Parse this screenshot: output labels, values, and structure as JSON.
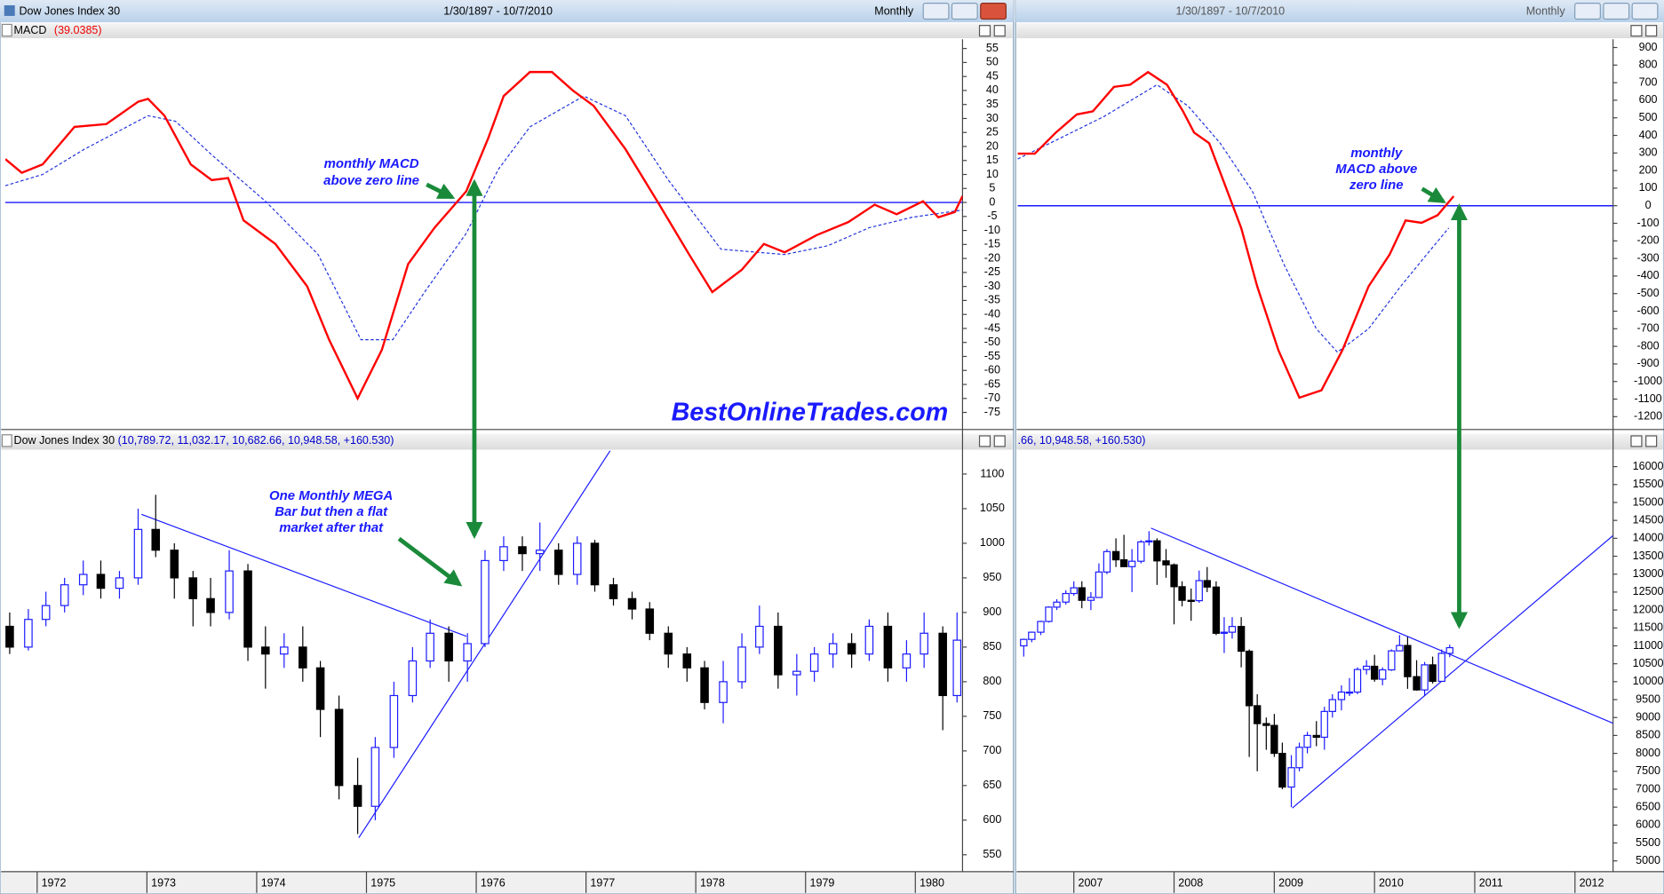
{
  "left": {
    "title": "Dow Jones Index 30",
    "range": "1/30/1897 - 10/7/2010",
    "period": "Monthly",
    "xlim": [
      1971.71,
      1980.43
    ],
    "xticks": [
      1972,
      1973,
      1974,
      1975,
      1976,
      1977,
      1978,
      1979,
      1980
    ],
    "macd": {
      "label": "MACD",
      "value": "(39.0385)",
      "ylim": [
        -81.1,
        58.3
      ],
      "yticks": [
        55,
        50,
        45,
        40,
        35,
        30,
        25,
        20,
        15,
        10,
        5,
        0,
        -5,
        -10,
        -15,
        -20,
        -25,
        -30,
        -35,
        -40,
        -45,
        -50,
        -55,
        -60,
        -65,
        -70,
        -75
      ],
      "zero": 0,
      "macd_x": [
        1971.71,
        1971.86,
        1972.05,
        1972.34,
        1972.63,
        1972.92,
        1973.01,
        1973.16,
        1973.4,
        1973.59,
        1973.74,
        1973.88,
        1974.17,
        1974.46,
        1974.66,
        1974.92,
        1975.14,
        1975.38,
        1975.62,
        1975.91,
        1976.11,
        1976.25,
        1976.49,
        1976.69,
        1976.88,
        1977.07,
        1977.36,
        1977.65,
        1977.94,
        1978.15,
        1978.42,
        1978.62,
        1978.81,
        1979.1,
        1979.39,
        1979.63,
        1979.83,
        1980.07,
        1980.21,
        1980.36,
        1980.43
      ],
      "macd": [
        15.5,
        10.6,
        13.6,
        27,
        28,
        36,
        37,
        31,
        13.6,
        8,
        8.7,
        -6.4,
        -14.8,
        -30,
        -49,
        -70,
        -52.7,
        -22,
        -9,
        4,
        23,
        38,
        46.6,
        46.6,
        40,
        34.5,
        19,
        0.4,
        -18.6,
        -32,
        -24,
        -14.8,
        -17.8,
        -11.7,
        -7,
        -0.8,
        -4.2,
        0.4,
        -5.3,
        -3.4,
        2.3
      ],
      "signal_x": [
        1971.71,
        1972.05,
        1972.43,
        1973.01,
        1973.26,
        1973.59,
        1974.08,
        1974.56,
        1974.95,
        1975.24,
        1975.53,
        1975.91,
        1976.2,
        1976.49,
        1976.98,
        1977.36,
        1977.75,
        1978.23,
        1978.81,
        1979.2,
        1979.58,
        1979.97,
        1980.43
      ],
      "signal": [
        6,
        10,
        19,
        31,
        29,
        17,
        0.4,
        -18.6,
        -49,
        -49,
        -32,
        -11,
        11.7,
        27,
        38,
        31,
        8,
        -16.7,
        -18.6,
        -15.5,
        -9,
        -5.3,
        -2.7
      ],
      "annotation": [
        "monthly MACD",
        "above zero line"
      ]
    },
    "price": {
      "label": "Dow Jones Index 30",
      "values": "(10,789.72, 11,032.17, 10,682.66, 10,948.58, +160.530)",
      "ylim": [
        525.5,
        1133.7
      ],
      "yticks": [
        1100,
        1050,
        1000,
        950,
        900,
        850,
        800,
        750,
        700,
        650,
        600,
        550
      ],
      "x": [
        1971.75,
        1971.92,
        1972.08,
        1972.25,
        1972.42,
        1972.58,
        1972.75,
        1972.92,
        1973.08,
        1973.25,
        1973.42,
        1973.58,
        1973.75,
        1973.92,
        1974.08,
        1974.25,
        1974.42,
        1974.58,
        1974.75,
        1974.92,
        1975.08,
        1975.25,
        1975.42,
        1975.58,
        1975.75,
        1975.92,
        1976.08,
        1976.25,
        1976.42,
        1976.58,
        1976.75,
        1976.92,
        1977.08,
        1977.25,
        1977.42,
        1977.58,
        1977.75,
        1977.92,
        1978.08,
        1978.25,
        1978.42,
        1978.58,
        1978.75,
        1978.92,
        1979.08,
        1979.25,
        1979.42,
        1979.58,
        1979.75,
        1979.92,
        1980.08,
        1980.25,
        1980.38
      ],
      "ohlc": [
        [
          880,
          900,
          840,
          850
        ],
        [
          850,
          905,
          845,
          890
        ],
        [
          890,
          930,
          880,
          910
        ],
        [
          910,
          950,
          900,
          940
        ],
        [
          940,
          975,
          925,
          955
        ],
        [
          955,
          975,
          920,
          935
        ],
        [
          935,
          960,
          920,
          950
        ],
        [
          950,
          1050,
          940,
          1020
        ],
        [
          1020,
          1070,
          980,
          990
        ],
        [
          990,
          1000,
          920,
          950
        ],
        [
          950,
          960,
          880,
          920
        ],
        [
          920,
          950,
          880,
          900
        ],
        [
          900,
          990,
          890,
          960
        ],
        [
          960,
          970,
          830,
          850
        ],
        [
          850,
          880,
          790,
          840
        ],
        [
          840,
          870,
          820,
          850
        ],
        [
          850,
          880,
          800,
          820
        ],
        [
          820,
          830,
          720,
          760
        ],
        [
          760,
          780,
          630,
          650
        ],
        [
          650,
          690,
          580,
          620
        ],
        [
          620,
          720,
          600,
          705
        ],
        [
          705,
          800,
          690,
          780
        ],
        [
          780,
          850,
          770,
          830
        ],
        [
          830,
          890,
          820,
          870
        ],
        [
          870,
          880,
          800,
          830
        ],
        [
          830,
          870,
          800,
          855
        ],
        [
          855,
          990,
          850,
          975
        ],
        [
          975,
          1010,
          960,
          995
        ],
        [
          995,
          1010,
          960,
          985
        ],
        [
          985,
          1030,
          960,
          990
        ],
        [
          990,
          1000,
          940,
          955
        ],
        [
          955,
          1010,
          940,
          1000
        ],
        [
          1000,
          1005,
          930,
          940
        ],
        [
          940,
          950,
          910,
          920
        ],
        [
          920,
          930,
          890,
          905
        ],
        [
          905,
          915,
          860,
          870
        ],
        [
          870,
          880,
          820,
          840
        ],
        [
          840,
          850,
          800,
          820
        ],
        [
          820,
          830,
          760,
          770
        ],
        [
          770,
          830,
          740,
          800
        ],
        [
          800,
          870,
          790,
          850
        ],
        [
          850,
          910,
          840,
          880
        ],
        [
          880,
          900,
          790,
          810
        ],
        [
          810,
          840,
          780,
          815
        ],
        [
          815,
          850,
          800,
          840
        ],
        [
          840,
          870,
          820,
          855
        ],
        [
          855,
          870,
          820,
          840
        ],
        [
          840,
          890,
          830,
          880
        ],
        [
          880,
          900,
          800,
          820
        ],
        [
          820,
          860,
          800,
          840
        ],
        [
          840,
          900,
          820,
          870
        ],
        [
          870,
          880,
          730,
          780
        ],
        [
          780,
          900,
          770,
          860
        ]
      ],
      "trendlines": [
        {
          "x": [
            1972.95,
            1975.91
          ],
          "y": [
            1041.8,
            865.6
          ]
        },
        {
          "x": [
            1974.93,
            1977.22
          ],
          "y": [
            574.5,
            1133.7
          ]
        }
      ],
      "annotation": [
        "One Monthly MEGA",
        "Bar but then a flat",
        "market after that"
      ]
    },
    "watermark": "BestOnlineTrades.com"
  },
  "right": {
    "range": "1/30/1897 - 10/7/2010",
    "period": "Monthly",
    "xlim": [
      2006.44,
      2012.38
    ],
    "xticks": [
      2007,
      2008,
      2009,
      2010,
      2011,
      2012
    ],
    "macd": {
      "ylim": [
        -1273,
        947
      ],
      "yticks": [
        900,
        800,
        700,
        600,
        500,
        400,
        300,
        200,
        100,
        0,
        -100,
        -200,
        -300,
        -400,
        -500,
        -600,
        -700,
        -800,
        -900,
        -1000,
        -1100,
        -1200
      ],
      "zero": 0,
      "macd_x": [
        2006.44,
        2006.61,
        2006.82,
        2007.03,
        2007.19,
        2007.4,
        2007.56,
        2007.74,
        2007.93,
        2008.09,
        2008.2,
        2008.35,
        2008.51,
        2008.67,
        2008.83,
        2009.04,
        2009.25,
        2009.47,
        2009.68,
        2009.94,
        2010.15,
        2010.31,
        2010.47,
        2010.63,
        2010.79
      ],
      "macd": [
        296,
        296,
        416,
        519,
        537,
        676,
        688,
        760,
        688,
        537,
        416,
        356,
        115,
        -127,
        -459,
        -821,
        -1092,
        -1050,
        -821,
        -459,
        -278,
        -84,
        -97,
        -54,
        54
      ],
      "signal_x": [
        2006.44,
        2006.87,
        2007.3,
        2007.83,
        2008.14,
        2008.46,
        2008.78,
        2009.1,
        2009.42,
        2009.63,
        2009.94,
        2010.26,
        2010.52,
        2010.74
      ],
      "signal": [
        266,
        386,
        507,
        688,
        567,
        356,
        84,
        -338,
        -700,
        -833,
        -700,
        -459,
        -278,
        -127
      ],
      "annotation": [
        "monthly",
        "MACD above",
        "zero line"
      ]
    },
    "price": {
      "values": ".66, 10,948.58, +160.530)",
      "ylim": [
        4698,
        16444
      ],
      "yticks": [
        16000,
        15500,
        15000,
        14500,
        14000,
        13500,
        13000,
        12500,
        12000,
        11500,
        11000,
        10500,
        10000,
        9500,
        9000,
        8500,
        8000,
        7500,
        7000,
        6500,
        6000,
        5500,
        5000
      ],
      "x": [
        2006.5,
        2006.58,
        2006.67,
        2006.75,
        2006.83,
        2006.92,
        2007.0,
        2007.08,
        2007.17,
        2007.25,
        2007.33,
        2007.42,
        2007.5,
        2007.58,
        2007.67,
        2007.75,
        2007.83,
        2007.92,
        2008.0,
        2008.08,
        2008.17,
        2008.25,
        2008.33,
        2008.42,
        2008.5,
        2008.58,
        2008.67,
        2008.75,
        2008.83,
        2008.92,
        2009.0,
        2009.08,
        2009.17,
        2009.25,
        2009.33,
        2009.42,
        2009.5,
        2009.58,
        2009.67,
        2009.75,
        2009.83,
        2009.92,
        2010.0,
        2010.08,
        2010.17,
        2010.25,
        2010.33,
        2010.42,
        2010.5,
        2010.58,
        2010.67,
        2010.75
      ],
      "ohlc": [
        [
          11000,
          11200,
          10700,
          11180
        ],
        [
          11180,
          11400,
          11100,
          11380
        ],
        [
          11380,
          11700,
          11300,
          11680
        ],
        [
          11680,
          12100,
          11650,
          12080
        ],
        [
          12080,
          12300,
          12000,
          12220
        ],
        [
          12220,
          12550,
          12150,
          12460
        ],
        [
          12460,
          12800,
          12400,
          12620
        ],
        [
          12620,
          12800,
          12050,
          12270
        ],
        [
          12270,
          12500,
          12000,
          12350
        ],
        [
          12350,
          13300,
          12350,
          13060
        ],
        [
          13060,
          13700,
          13000,
          13630
        ],
        [
          13630,
          14000,
          13200,
          13400
        ],
        [
          13400,
          14100,
          13300,
          13210
        ],
        [
          13210,
          13700,
          12500,
          13360
        ],
        [
          13360,
          13950,
          13300,
          13900
        ],
        [
          13900,
          14200,
          13800,
          13930
        ],
        [
          13930,
          14000,
          12700,
          13370
        ],
        [
          13370,
          13700,
          12900,
          13260
        ],
        [
          13260,
          13300,
          11600,
          12650
        ],
        [
          12650,
          12800,
          12100,
          12270
        ],
        [
          12270,
          12600,
          11700,
          12260
        ],
        [
          12260,
          13100,
          12200,
          12820
        ],
        [
          12820,
          13200,
          12500,
          12640
        ],
        [
          12640,
          12800,
          11300,
          11350
        ],
        [
          11350,
          11800,
          10800,
          11380
        ],
        [
          11380,
          11800,
          11200,
          11540
        ],
        [
          11540,
          11800,
          10400,
          10850
        ],
        [
          10850,
          10900,
          7900,
          9330
        ],
        [
          9330,
          9650,
          7500,
          8830
        ],
        [
          8830,
          9000,
          8100,
          8780
        ],
        [
          8780,
          9100,
          7900,
          8000
        ],
        [
          8000,
          8300,
          7000,
          7060
        ],
        [
          7060,
          7950,
          6500,
          7600
        ],
        [
          7600,
          8300,
          7500,
          8170
        ],
        [
          8170,
          8600,
          8000,
          8500
        ],
        [
          8500,
          8900,
          8200,
          8450
        ],
        [
          8450,
          9300,
          8100,
          9170
        ],
        [
          9170,
          9650,
          9000,
          9500
        ],
        [
          9500,
          9900,
          9200,
          9710
        ],
        [
          9710,
          10100,
          9600,
          9710
        ],
        [
          9710,
          10400,
          9650,
          10340
        ],
        [
          10340,
          10600,
          10200,
          10430
        ],
        [
          10430,
          10750,
          10000,
          10070
        ],
        [
          10070,
          10400,
          9900,
          10330
        ],
        [
          10330,
          10900,
          10300,
          10860
        ],
        [
          10860,
          11300,
          10850,
          11010
        ],
        [
          11010,
          11250,
          9800,
          10140
        ],
        [
          10140,
          10600,
          9750,
          9770
        ],
        [
          9770,
          10550,
          9600,
          10470
        ],
        [
          10470,
          10700,
          9950,
          10010
        ],
        [
          10010,
          10900,
          10000,
          10790
        ],
        [
          10790,
          11032,
          10683,
          10949
        ]
      ],
      "trendlines": [
        {
          "x": [
            2007.77,
            2012.38
          ],
          "y": [
            14284,
            8840
          ]
        },
        {
          "x": [
            2009.18,
            2012.38
          ],
          "y": [
            6474,
            14077
          ]
        }
      ]
    }
  }
}
